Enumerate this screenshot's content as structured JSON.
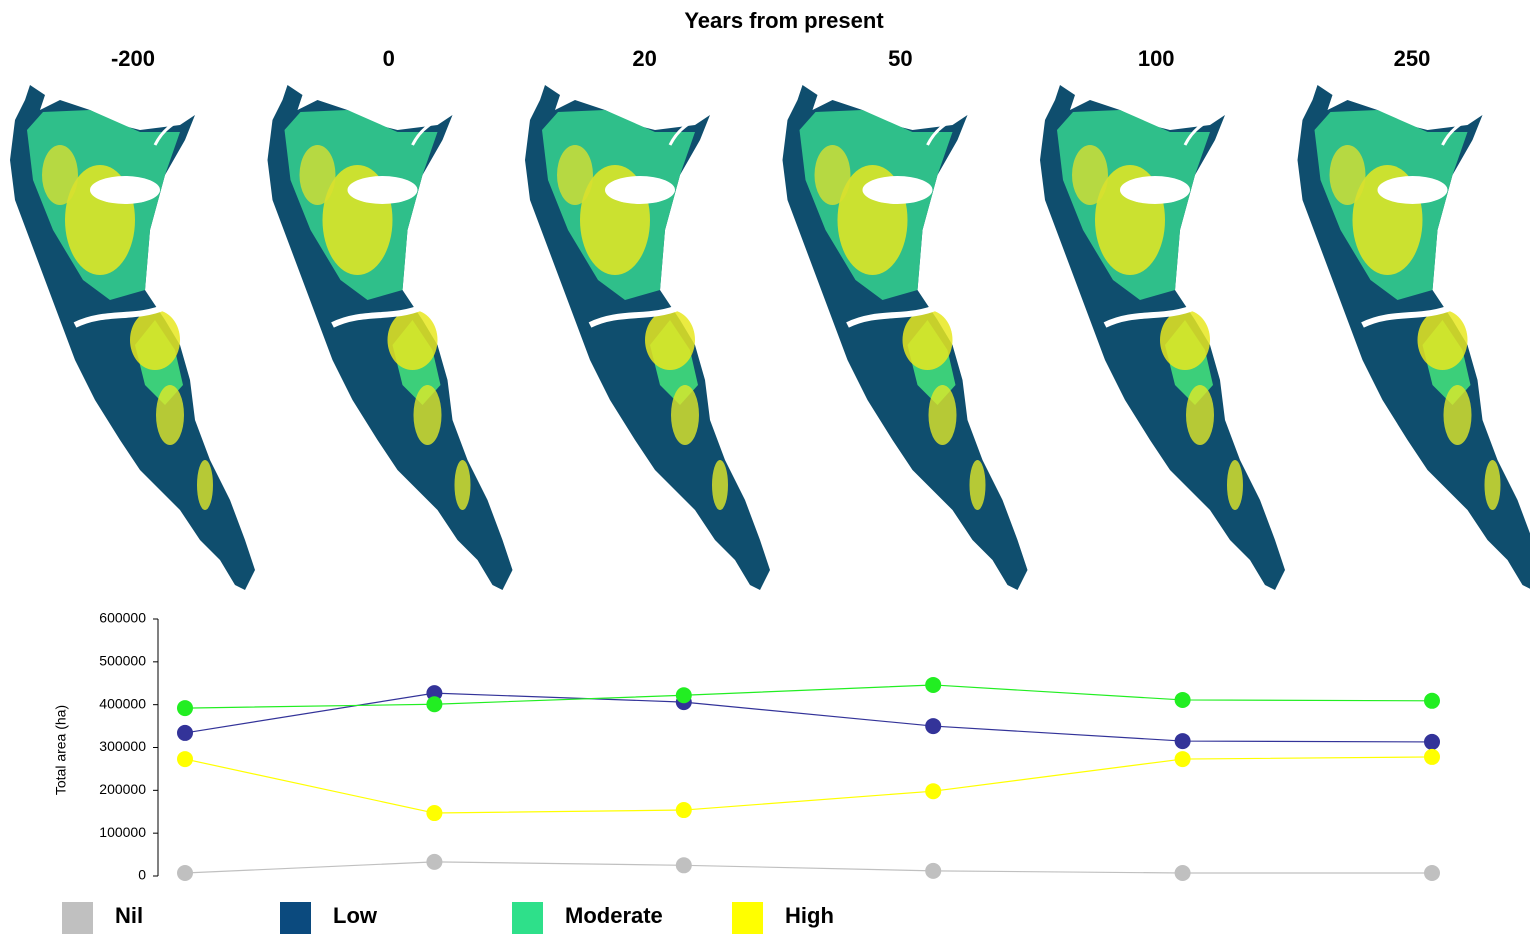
{
  "chart_data": {
    "type": "line",
    "title": "Years from present",
    "categories": [
      "-200",
      "0",
      "20",
      "50",
      "100",
      "250"
    ],
    "y_label": "Total area (ha)",
    "ylim": [
      0,
      600000
    ],
    "yticks": [
      0,
      100000,
      200000,
      300000,
      400000,
      500000,
      600000
    ],
    "grid": false,
    "series": [
      {
        "name": "Nil",
        "color": "#c0c0c0",
        "legend_color": "#c0c0c0",
        "values": [
          7000,
          33000,
          25000,
          12000,
          7000,
          7000
        ]
      },
      {
        "name": "Low",
        "color": "#333399",
        "legend_color": "#0b4a7e",
        "values": [
          334000,
          427000,
          406000,
          350000,
          315000,
          313000
        ]
      },
      {
        "name": "Moderate",
        "color": "#22ee22",
        "legend_color": "#2ee08a",
        "values": [
          392000,
          401000,
          422000,
          446000,
          411000,
          409000
        ]
      },
      {
        "name": "High",
        "color": "#ffff00",
        "legend_color": "#ffff00",
        "values": [
          273000,
          147000,
          154000,
          198000,
          273000,
          278000
        ]
      }
    ]
  }
}
